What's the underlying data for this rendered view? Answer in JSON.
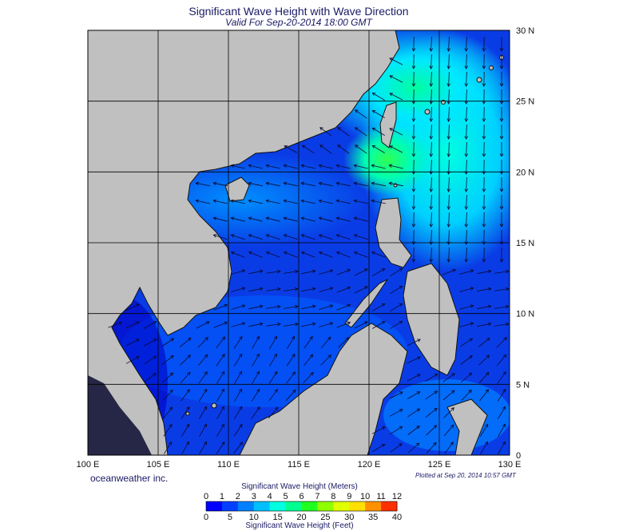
{
  "header": {
    "title": "Significant Wave Height with Wave Direction",
    "subtitle": "Valid For Sep-20-2014 18:00 GMT"
  },
  "map": {
    "lon_range": [
      100,
      130
    ],
    "lat_range": [
      0,
      30
    ],
    "lon_ticks": [
      "100 E",
      "105 E",
      "110 E",
      "115 E",
      "120 E",
      "125 E",
      "130 E"
    ],
    "lat_ticks": [
      "0",
      "5 N",
      "10 N",
      "15 N",
      "20 N",
      "25 N",
      "30 N"
    ],
    "land_color": "#c0c0c0",
    "grid": true
  },
  "footer": {
    "credit": "oceanweather inc.",
    "plotted": "Plotted at Sep 20, 2014 10:57 GMT"
  },
  "legend": {
    "meters_title": "Significant Wave Height (Meters)",
    "feet_title": "Significant Wave Height (Feet)",
    "meters_ticks": [
      "0",
      "1",
      "2",
      "3",
      "4",
      "5",
      "6",
      "7",
      "8",
      "9",
      "10",
      "11",
      "12"
    ],
    "feet_ticks": [
      "0",
      "5",
      "10",
      "15",
      "20",
      "25",
      "30",
      "35",
      "40"
    ],
    "colors": [
      "#0000ff",
      "#0040ff",
      "#0080ff",
      "#00c0ff",
      "#00ffe0",
      "#00ff90",
      "#20ff20",
      "#90ff00",
      "#e0ff00",
      "#ffe000",
      "#ff9000",
      "#ff3000"
    ]
  }
}
